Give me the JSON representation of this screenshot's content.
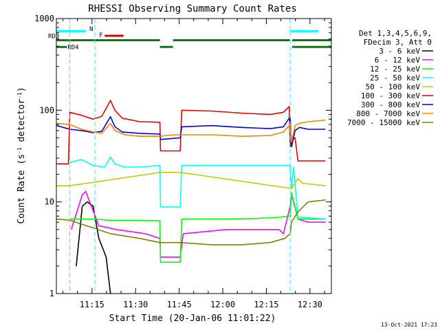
{
  "chart_data": {
    "type": "line",
    "title": "RHESSI Observing Summary Count Rates",
    "xlabel": "Start Time (20-Jan-06 11:01:22)",
    "ylabel_main": "Count Rate (s",
    "ylabel_sup1": "-1",
    "ylabel_mid": " detector",
    "ylabel_sup2": "-1",
    "ylabel_end": ")",
    "y_scale": "log",
    "ylim": [
      1,
      1000
    ],
    "y_ticks": [
      1,
      10,
      100,
      1000
    ],
    "y_tick_labels": [
      "1",
      "10",
      "100",
      "1000"
    ],
    "x_range_min": [
      1.37,
      96.0
    ],
    "x_ticks_min": [
      13.63,
      28.63,
      43.63,
      58.63,
      73.63,
      88.63
    ],
    "x_tick_labels": [
      "11:15",
      "11:30",
      "11:45",
      "12:00",
      "12:15",
      "12:30"
    ],
    "legend_header": [
      "Det 1,3,4,5,6,9,",
      "FDecim 3, Att 0"
    ],
    "legend_placement": "right",
    "footer_date": "13-Oct-2021 17:23",
    "flags": [
      {
        "label": "N",
        "color": "#00ffff",
        "level": 730,
        "segments": [
          [
            1.37,
            11.5
          ],
          [
            81.8,
            91.5
          ]
        ]
      },
      {
        "label": "F",
        "color": "#e00000",
        "level": 650,
        "segments": [
          [
            18.0,
            24.5
          ]
        ]
      },
      {
        "label": "RD0",
        "color": "#008000",
        "level": 580,
        "segments": [
          [
            1.37,
            18.5
          ],
          [
            18.5,
            37.0
          ],
          [
            41.5,
            81.8
          ],
          [
            82.5,
            96.0
          ]
        ]
      },
      {
        "label": "RD4",
        "color": "#008000",
        "level": 490,
        "segments": [
          [
            1.37,
            5.0
          ],
          [
            37.0,
            41.5
          ],
          [
            82.5,
            96.0
          ]
        ]
      }
    ],
    "vlines": {
      "color": "#00ffff",
      "x_min": [
        6.0,
        14.6,
        81.8,
        96.0
      ]
    },
    "series": [
      {
        "name": "3 - 6 keV",
        "color": "#000000",
        "data": [
          [
            8.2,
            2.0
          ],
          [
            10.3,
            9
          ],
          [
            12.0,
            10
          ],
          [
            14.0,
            9
          ],
          [
            16.0,
            4
          ],
          [
            18.5,
            2.5
          ],
          [
            20.0,
            1
          ]
        ]
      },
      {
        "name": "6 - 12 keV",
        "color": "#ff00ff",
        "data": [
          [
            6.5,
            5.0
          ],
          [
            10.3,
            12
          ],
          [
            11.5,
            13
          ],
          [
            14.0,
            8
          ],
          [
            16.0,
            5.5
          ],
          [
            22.0,
            5.0
          ],
          [
            32.0,
            4.5
          ],
          [
            37.0,
            4.0
          ],
          [
            37.2,
            2.5
          ],
          [
            44.0,
            2.5
          ],
          [
            45.0,
            4.5
          ],
          [
            60.0,
            5.0
          ],
          [
            70.0,
            5.0
          ],
          [
            78.0,
            5.0
          ],
          [
            79.5,
            4.5
          ],
          [
            80.5,
            6.0
          ],
          [
            81.8,
            9.0
          ],
          [
            82.3,
            12.0
          ],
          [
            84.5,
            6.5
          ],
          [
            88.0,
            6.0
          ],
          [
            94.0,
            6.0
          ]
        ]
      },
      {
        "name": "12 - 25 keV",
        "color": "#00ff00",
        "data": [
          [
            6.0,
            6.5
          ],
          [
            14.0,
            6.5
          ],
          [
            20.0,
            6.3
          ],
          [
            30.0,
            6.3
          ],
          [
            37.0,
            6.2
          ],
          [
            37.2,
            2.2
          ],
          [
            44.0,
            2.2
          ],
          [
            44.5,
            6.5
          ],
          [
            60.0,
            6.5
          ],
          [
            70.0,
            6.6
          ],
          [
            78.0,
            6.8
          ],
          [
            81.8,
            7.0
          ],
          [
            82.3,
            12.5
          ],
          [
            84.5,
            6.5
          ],
          [
            94.0,
            6.5
          ]
        ]
      },
      {
        "name": "25 - 50 keV",
        "color": "#00ffff",
        "data": [
          [
            6.0,
            27
          ],
          [
            10.0,
            29
          ],
          [
            14.0,
            25
          ],
          [
            18.0,
            24
          ],
          [
            20.0,
            31
          ],
          [
            21.5,
            26
          ],
          [
            25.0,
            24
          ],
          [
            30.0,
            24
          ],
          [
            37.0,
            25
          ],
          [
            37.2,
            8.8
          ],
          [
            44.0,
            8.8
          ],
          [
            44.5,
            25
          ],
          [
            55.0,
            25
          ],
          [
            65.0,
            25
          ],
          [
            75.0,
            25
          ],
          [
            81.8,
            25
          ],
          [
            82.3,
            14
          ],
          [
            83.0,
            24
          ],
          [
            84.5,
            6.8
          ],
          [
            86.0,
            6.8
          ],
          [
            94.0,
            6.5
          ]
        ]
      },
      {
        "name": "50 - 100 keV",
        "color": "#c8c800",
        "data": [
          [
            1.5,
            15
          ],
          [
            6.0,
            15
          ],
          [
            37.2,
            21
          ],
          [
            44.0,
            21
          ],
          [
            82.3,
            14
          ],
          [
            84.5,
            18
          ],
          [
            86.0,
            16
          ],
          [
            94.0,
            15
          ]
        ]
      },
      {
        "name": "100 - 300 keV",
        "color": "#e00000",
        "data": [
          [
            1.5,
            26
          ],
          [
            5.5,
            26
          ],
          [
            6.0,
            95
          ],
          [
            10.0,
            88
          ],
          [
            14.0,
            80
          ],
          [
            17.0,
            86
          ],
          [
            20.0,
            128
          ],
          [
            21.5,
            100
          ],
          [
            24.0,
            82
          ],
          [
            30.0,
            75
          ],
          [
            37.0,
            74
          ],
          [
            37.2,
            36
          ],
          [
            44.0,
            36
          ],
          [
            44.5,
            100
          ],
          [
            55.0,
            98
          ],
          [
            65.0,
            93
          ],
          [
            75.0,
            90
          ],
          [
            79.5,
            95
          ],
          [
            81.5,
            110
          ],
          [
            81.8,
            40
          ],
          [
            82.3,
            47
          ],
          [
            83.5,
            50
          ],
          [
            84.5,
            28
          ],
          [
            86.0,
            28
          ],
          [
            94.0,
            28
          ]
        ]
      },
      {
        "name": "300 - 800 keV",
        "color": "#0000cc",
        "data": [
          [
            1.5,
            68
          ],
          [
            6.0,
            62
          ],
          [
            10.0,
            60
          ],
          [
            14.0,
            57
          ],
          [
            17.0,
            59
          ],
          [
            20.0,
            85
          ],
          [
            21.5,
            66
          ],
          [
            24.0,
            58
          ],
          [
            30.0,
            56
          ],
          [
            37.0,
            55
          ],
          [
            37.2,
            48
          ],
          [
            44.0,
            50
          ],
          [
            44.5,
            66
          ],
          [
            55.0,
            68
          ],
          [
            65.0,
            65
          ],
          [
            75.0,
            63
          ],
          [
            79.5,
            66
          ],
          [
            81.8,
            85
          ],
          [
            82.3,
            40
          ],
          [
            83.5,
            60
          ],
          [
            85.0,
            65
          ],
          [
            88.0,
            62
          ],
          [
            94.0,
            62
          ]
        ]
      },
      {
        "name": "800 - 7000 keV",
        "color": "#ff8000",
        "data": [
          [
            1.5,
            72
          ],
          [
            6.0,
            70
          ],
          [
            10.0,
            62
          ],
          [
            14.0,
            58
          ],
          [
            17.0,
            56
          ],
          [
            20.0,
            72
          ],
          [
            21.5,
            60
          ],
          [
            25.0,
            54
          ],
          [
            30.0,
            52
          ],
          [
            37.0,
            52
          ],
          [
            42.0,
            54
          ],
          [
            44.5,
            54
          ],
          [
            55.0,
            54
          ],
          [
            65.0,
            52
          ],
          [
            75.0,
            53
          ],
          [
            79.5,
            58
          ],
          [
            81.8,
            70
          ],
          [
            82.3,
            45
          ],
          [
            83.5,
            68
          ],
          [
            85.0,
            72
          ],
          [
            88.0,
            75
          ],
          [
            94.0,
            78
          ]
        ]
      },
      {
        "name": "7000 - 15000 keV",
        "color": "#808000",
        "data": [
          [
            1.5,
            6.5
          ],
          [
            6.0,
            6.3
          ],
          [
            14.0,
            5.2
          ],
          [
            20.0,
            4.5
          ],
          [
            30.0,
            4.0
          ],
          [
            37.0,
            3.6
          ],
          [
            44.0,
            3.6
          ],
          [
            55.0,
            3.4
          ],
          [
            65.0,
            3.4
          ],
          [
            75.0,
            3.6
          ],
          [
            80.0,
            4.0
          ],
          [
            81.8,
            4.5
          ],
          [
            82.3,
            6.0
          ],
          [
            84.5,
            7.8
          ],
          [
            88.0,
            10.0
          ],
          [
            94.0,
            10.5
          ]
        ]
      }
    ]
  }
}
